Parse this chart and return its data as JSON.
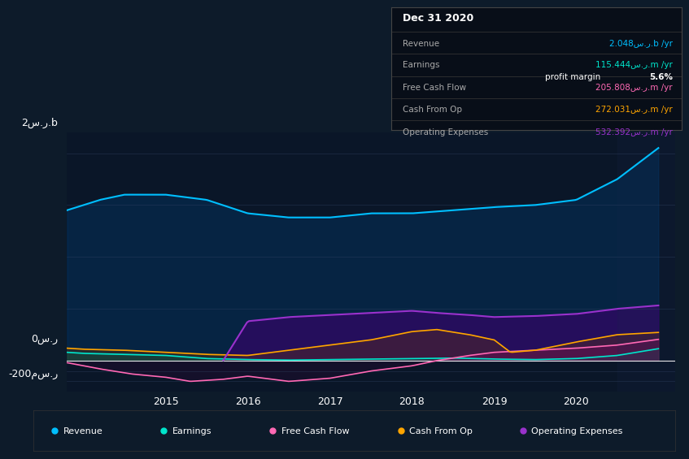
{
  "bg_color": "#0d1b2a",
  "plot_bg_color": "#0a1628",
  "colors": {
    "revenue": "#00bfff",
    "earnings": "#00e5cc",
    "free_cash_flow": "#ff69b4",
    "cash_from_op": "#ffa500",
    "operating_expenses": "#9932cc"
  },
  "ylabel_top": "2س.ر.b",
  "ylabel_zero": "0س.ر",
  "ylabel_neg": "-200مس.ر",
  "info_box": {
    "title": "Dec 31 2020",
    "revenue_label": "Revenue",
    "revenue_value": "2.048س.ر.b /yr",
    "earnings_label": "Earnings",
    "earnings_value": "115.444س.ر.m /yr",
    "profit_margin": "5.6% profit margin",
    "fcf_label": "Free Cash Flow",
    "fcf_value": "205.808س.ر.m /yr",
    "cfo_label": "Cash From Op",
    "cfo_value": "272.031س.ر.m /yr",
    "opex_label": "Operating Expenses",
    "opex_value": "532.392س.ر.m /yr"
  },
  "x_ticks": [
    2015,
    2016,
    2017,
    2018,
    2019,
    2020
  ],
  "legend_items": [
    {
      "label": "Revenue",
      "color": "#00bfff"
    },
    {
      "label": "Earnings",
      "color": "#00e5cc"
    },
    {
      "label": "Free Cash Flow",
      "color": "#ff69b4"
    },
    {
      "label": "Cash From Op",
      "color": "#ffa500"
    },
    {
      "label": "Operating Expenses",
      "color": "#9932cc"
    }
  ]
}
